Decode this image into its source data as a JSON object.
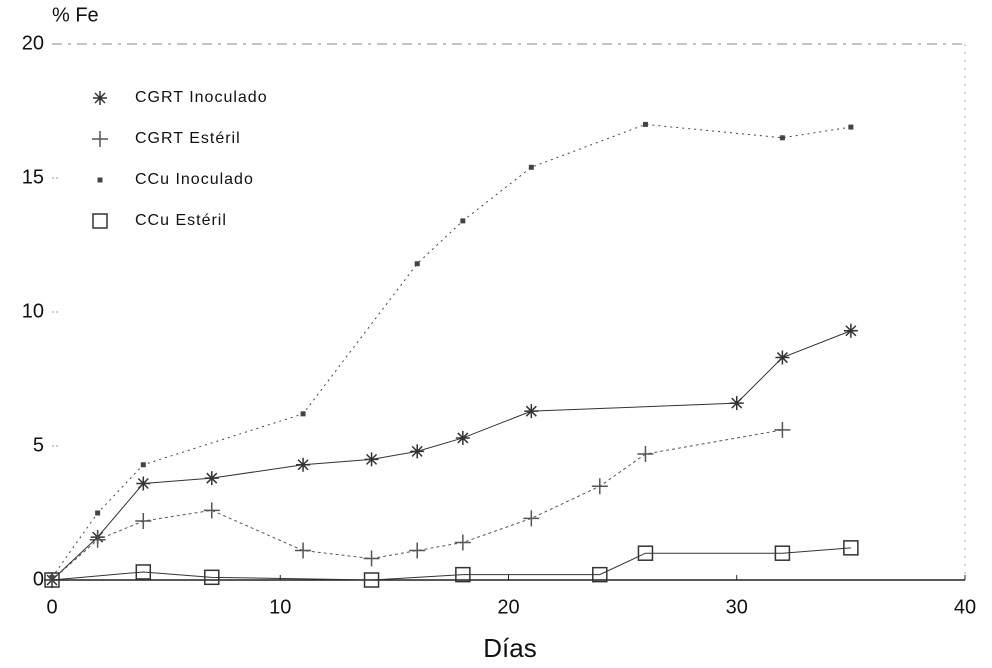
{
  "chart_data": {
    "type": "line",
    "y_label": "% Fe",
    "x_label": "Días",
    "xlim": [
      0,
      40
    ],
    "xticks": [
      0,
      10,
      20,
      30,
      40
    ],
    "ylim": [
      0,
      20
    ],
    "yticks": [
      0,
      5,
      10,
      15,
      20
    ],
    "series": [
      {
        "name": "CGRT Inoculado",
        "color": "#333333",
        "marker": "asterisk",
        "x": [
          0,
          2,
          4,
          7,
          11,
          14,
          16,
          18,
          21,
          30,
          32,
          35
        ],
        "values": [
          0,
          1.6,
          3.6,
          3.8,
          4.3,
          4.5,
          4.8,
          5.3,
          6.3,
          6.6,
          8.3,
          9.3
        ]
      },
      {
        "name": "CGRT Estéril",
        "color": "#555555",
        "marker": "plus",
        "x": [
          0,
          2,
          4,
          7,
          11,
          14,
          16,
          18,
          21,
          24,
          26,
          32
        ],
        "values": [
          0,
          1.5,
          2.2,
          2.6,
          1.1,
          0.8,
          1.1,
          1.4,
          2.3,
          3.5,
          4.7,
          5.6
        ]
      },
      {
        "name": "CCu Inoculado",
        "color": "#444444",
        "marker": "dot",
        "x": [
          0,
          2,
          4,
          11,
          16,
          18,
          21,
          26,
          32,
          35
        ],
        "values": [
          0.1,
          2.5,
          4.3,
          6.2,
          11.8,
          13.4,
          15.4,
          17.0,
          16.5,
          16.9
        ]
      },
      {
        "name": "CCu Estéril",
        "color": "#333333",
        "marker": "square",
        "x": [
          0,
          4,
          7,
          14,
          18,
          24,
          26,
          32,
          35
        ],
        "values": [
          0,
          0.3,
          0.1,
          0,
          0.2,
          0.2,
          1.0,
          1.0,
          1.2
        ]
      }
    ]
  }
}
